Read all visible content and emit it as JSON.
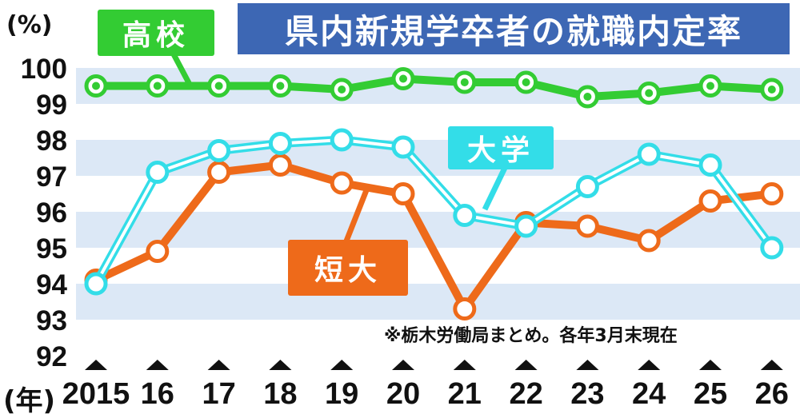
{
  "title": "県内新規学卒者の就職内定率",
  "unit_label": "(%)",
  "year_unit_label": "(年)",
  "note": "※栃木労働局まとめ。各年3月末現在",
  "colors": {
    "high_school": "#33cc33",
    "university": "#33dde8",
    "junior_college": "#ee6a1a",
    "title_bg": "#3d67b4",
    "band": "#dce8f6"
  },
  "chart_data": {
    "type": "line",
    "title": "県内新規学卒者の就職内定率",
    "ylabel": "(%)",
    "xlabel": "(年)",
    "ylim": [
      92,
      100
    ],
    "yticks": [
      "92",
      "93",
      "94",
      "95",
      "96",
      "97",
      "98",
      "99",
      "100"
    ],
    "x": [
      "2015",
      "16",
      "17",
      "18",
      "19",
      "20",
      "21",
      "22",
      "23",
      "24",
      "25",
      "26"
    ],
    "series": [
      {
        "name": "高校",
        "color": "#33cc33",
        "values": [
          99.5,
          99.5,
          99.5,
          99.5,
          99.4,
          99.7,
          99.6,
          99.6,
          99.2,
          99.3,
          99.5,
          99.4
        ]
      },
      {
        "name": "大学",
        "color": "#33dde8",
        "values": [
          94.0,
          97.1,
          97.7,
          97.9,
          98.0,
          97.8,
          95.9,
          95.6,
          96.7,
          97.6,
          97.3,
          95.0
        ]
      },
      {
        "name": "短大",
        "color": "#ee6a1a",
        "values": [
          94.1,
          94.9,
          97.1,
          97.3,
          96.8,
          96.5,
          93.3,
          95.7,
          95.6,
          95.2,
          96.3,
          96.5
        ]
      }
    ]
  }
}
